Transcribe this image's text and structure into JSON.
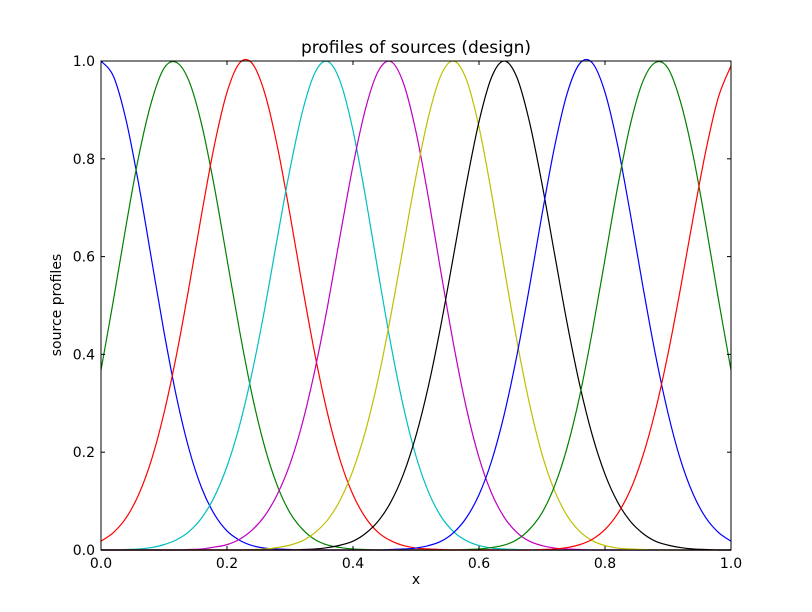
{
  "chart_data": {
    "type": "line",
    "title": "profiles of sources (design)",
    "xlabel": "x",
    "ylabel": "source profiles",
    "xlim": [
      0.0,
      1.0
    ],
    "ylim": [
      0.0,
      1.0
    ],
    "xticks": [
      "0.0",
      "0.2",
      "0.4",
      "0.6",
      "0.8",
      "1.0"
    ],
    "yticks": [
      "0.0",
      "0.2",
      "0.4",
      "0.6",
      "0.8",
      "1.0"
    ],
    "grid": false,
    "legend": "none",
    "x": [
      0.0,
      0.02,
      0.04,
      0.06,
      0.08,
      0.1,
      0.12,
      0.14,
      0.16,
      0.18,
      0.2,
      0.22,
      0.24,
      0.26,
      0.28,
      0.3,
      0.32,
      0.34,
      0.36,
      0.38,
      0.4,
      0.42,
      0.44,
      0.46,
      0.48,
      0.5,
      0.52,
      0.54,
      0.56,
      0.58,
      0.6,
      0.62,
      0.64,
      0.66,
      0.68,
      0.7,
      0.72,
      0.74,
      0.76,
      0.78,
      0.8,
      0.82,
      0.84,
      0.86,
      0.88,
      0.9,
      0.92,
      0.94,
      0.96,
      0.98,
      1.0
    ],
    "series": [
      {
        "color": "#0000ff",
        "values": [
          1.0,
          0.968,
          0.878,
          0.747,
          0.596,
          0.446,
          0.312,
          0.205,
          0.126,
          0.073,
          0.039,
          0.02,
          0.009,
          0.004,
          0.002,
          0.001,
          0.0,
          0.0,
          0.0,
          0.0,
          0.0,
          0.0,
          0.0,
          0.0,
          0.0,
          0.0,
          0.0,
          0.0,
          0.0,
          0.0,
          0.0,
          0.0,
          0.0,
          0.0,
          0.0,
          0.0,
          0.0,
          0.0,
          0.0,
          0.0,
          0.0,
          0.0,
          0.0,
          0.0,
          0.0,
          0.0,
          0.0,
          0.0,
          0.0,
          0.0,
          0.0
        ]
      },
      {
        "color": "#008000",
        "values": [
          0.368,
          0.513,
          0.665,
          0.806,
          0.916,
          0.985,
          0.997,
          0.958,
          0.869,
          0.742,
          0.595,
          0.448,
          0.316,
          0.21,
          0.131,
          0.076,
          0.042,
          0.021,
          0.01,
          0.005,
          0.002,
          0.001,
          0.0,
          0.0,
          0.0,
          0.0,
          0.0,
          0.0,
          0.0,
          0.0,
          0.0,
          0.0,
          0.0,
          0.0,
          0.0,
          0.0,
          0.0,
          0.0,
          0.0,
          0.0,
          0.0,
          0.0,
          0.0,
          0.0,
          0.0,
          0.0,
          0.0,
          0.0,
          0.0,
          0.0,
          0.0
        ]
      },
      {
        "color": "#ff0000",
        "values": [
          0.018,
          0.036,
          0.066,
          0.114,
          0.184,
          0.28,
          0.4,
          0.54,
          0.689,
          0.828,
          0.936,
          0.996,
          0.995,
          0.934,
          0.825,
          0.686,
          0.537,
          0.397,
          0.277,
          0.182,
          0.113,
          0.066,
          0.036,
          0.019,
          0.009,
          0.004,
          0.002,
          0.001,
          0.0,
          0.0,
          0.0,
          0.0,
          0.0,
          0.0,
          0.0,
          0.0,
          0.0,
          0.0,
          0.0,
          0.0,
          0.0,
          0.0,
          0.0,
          0.0,
          0.0,
          0.0,
          0.0,
          0.0,
          0.0,
          0.0,
          0.0
        ]
      },
      {
        "color": "#00bfbf",
        "values": [
          0.0,
          0.0,
          0.001,
          0.002,
          0.005,
          0.011,
          0.021,
          0.038,
          0.066,
          0.109,
          0.171,
          0.255,
          0.364,
          0.494,
          0.639,
          0.779,
          0.898,
          0.977,
          0.999,
          0.957,
          0.858,
          0.721,
          0.568,
          0.421,
          0.293,
          0.192,
          0.118,
          0.068,
          0.037,
          0.019,
          0.009,
          0.004,
          0.002,
          0.001,
          0.0,
          0.0,
          0.0,
          0.0,
          0.0,
          0.0,
          0.0,
          0.0,
          0.0,
          0.0,
          0.0,
          0.0,
          0.0,
          0.0,
          0.0,
          0.0,
          0.0
        ]
      },
      {
        "color": "#bf00bf",
        "values": [
          0.0,
          0.0,
          0.0,
          0.0,
          0.0,
          0.0,
          0.0,
          0.001,
          0.002,
          0.006,
          0.011,
          0.022,
          0.041,
          0.07,
          0.114,
          0.176,
          0.261,
          0.371,
          0.501,
          0.646,
          0.786,
          0.903,
          0.979,
          0.999,
          0.955,
          0.855,
          0.718,
          0.565,
          0.418,
          0.29,
          0.189,
          0.116,
          0.067,
          0.036,
          0.018,
          0.009,
          0.004,
          0.002,
          0.001,
          0.0,
          0.0,
          0.0,
          0.0,
          0.0,
          0.0,
          0.0,
          0.0,
          0.0,
          0.0,
          0.0,
          0.0
        ]
      },
      {
        "color": "#bfbf00",
        "values": [
          0.0,
          0.0,
          0.0,
          0.0,
          0.0,
          0.0,
          0.0,
          0.0,
          0.0,
          0.0,
          0.0,
          0.0,
          0.001,
          0.002,
          0.005,
          0.01,
          0.019,
          0.036,
          0.062,
          0.103,
          0.163,
          0.244,
          0.35,
          0.479,
          0.622,
          0.764,
          0.887,
          0.972,
          1.0,
          0.962,
          0.865,
          0.729,
          0.577,
          0.429,
          0.3,
          0.196,
          0.121,
          0.07,
          0.038,
          0.019,
          0.009,
          0.004,
          0.002,
          0.001,
          0.0,
          0.0,
          0.0,
          0.0,
          0.0,
          0.0,
          0.0
        ]
      },
      {
        "color": "#000000",
        "values": [
          0.0,
          0.0,
          0.0,
          0.0,
          0.0,
          0.0,
          0.0,
          0.0,
          0.0,
          0.0,
          0.0,
          0.0,
          0.0,
          0.0,
          0.0,
          0.0,
          0.001,
          0.002,
          0.005,
          0.01,
          0.018,
          0.034,
          0.059,
          0.098,
          0.155,
          0.234,
          0.337,
          0.463,
          0.605,
          0.749,
          0.876,
          0.967,
          1.0,
          0.967,
          0.876,
          0.749,
          0.605,
          0.463,
          0.337,
          0.234,
          0.155,
          0.098,
          0.059,
          0.034,
          0.018,
          0.01,
          0.005,
          0.002,
          0.001,
          0.0,
          0.0
        ]
      },
      {
        "color": "#0000ff",
        "values": [
          0.0,
          0.0,
          0.0,
          0.0,
          0.0,
          0.0,
          0.0,
          0.0,
          0.0,
          0.0,
          0.0,
          0.0,
          0.0,
          0.0,
          0.0,
          0.0,
          0.0,
          0.0,
          0.0,
          0.0,
          0.0,
          0.0,
          0.0,
          0.001,
          0.002,
          0.004,
          0.009,
          0.018,
          0.036,
          0.066,
          0.113,
          0.182,
          0.277,
          0.397,
          0.537,
          0.686,
          0.825,
          0.934,
          0.995,
          0.996,
          0.936,
          0.828,
          0.689,
          0.54,
          0.4,
          0.28,
          0.184,
          0.114,
          0.066,
          0.036,
          0.018
        ]
      },
      {
        "color": "#008000",
        "values": [
          0.0,
          0.0,
          0.0,
          0.0,
          0.0,
          0.0,
          0.0,
          0.0,
          0.0,
          0.0,
          0.0,
          0.0,
          0.0,
          0.0,
          0.0,
          0.0,
          0.0,
          0.0,
          0.0,
          0.0,
          0.0,
          0.0,
          0.0,
          0.0,
          0.0,
          0.0,
          0.0,
          0.0,
          0.0,
          0.001,
          0.002,
          0.005,
          0.01,
          0.021,
          0.042,
          0.076,
          0.131,
          0.21,
          0.316,
          0.448,
          0.595,
          0.742,
          0.869,
          0.958,
          0.997,
          0.985,
          0.916,
          0.806,
          0.665,
          0.513,
          0.368
        ]
      },
      {
        "color": "#ff0000",
        "values": [
          0.0,
          0.0,
          0.0,
          0.0,
          0.0,
          0.0,
          0.0,
          0.0,
          0.0,
          0.0,
          0.0,
          0.0,
          0.0,
          0.0,
          0.0,
          0.0,
          0.0,
          0.0,
          0.0,
          0.0,
          0.0,
          0.0,
          0.0,
          0.0,
          0.0,
          0.0,
          0.0,
          0.0,
          0.0,
          0.0,
          0.0,
          0.0,
          0.0,
          0.0,
          0.0,
          0.001,
          0.002,
          0.005,
          0.011,
          0.022,
          0.042,
          0.074,
          0.122,
          0.192,
          0.285,
          0.401,
          0.536,
          0.68,
          0.816,
          0.926,
          0.99
        ]
      }
    ]
  }
}
